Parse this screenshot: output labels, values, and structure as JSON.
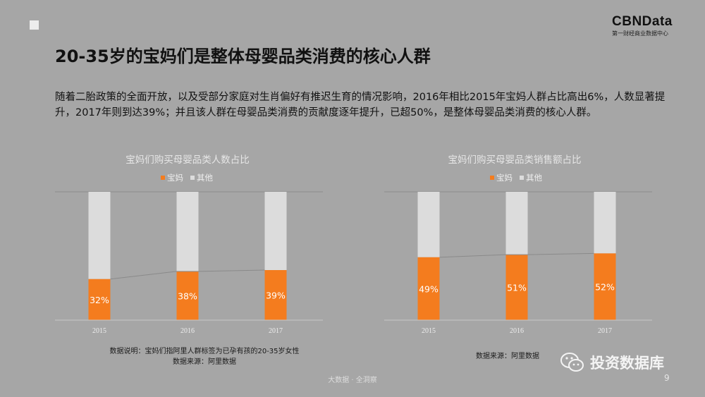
{
  "header": {
    "caption": "",
    "brand_name": "CBNData",
    "brand_sub": "第一财经商业数据中心"
  },
  "title": "20-35岁的宝妈们是整体母婴品类消费的核心人群",
  "intro": "随着二胎政策的全面开放，以及受部分家庭对生肖偏好有推迟生育的情况影响，2016年相比2015年宝妈人群占比高出6%，人数显著提升，2017年则到达39%；并且该人群在母婴品类消费的贡献度逐年提升，已超50%，是整体母婴品类消费的核心人群。",
  "colors": {
    "mom": "#f47c1e",
    "other": "#dcdcdc",
    "bg": "#a6a6a6"
  },
  "chart_data": [
    {
      "type": "bar",
      "stacked": true,
      "percent": true,
      "title": "宝妈们购买母婴品类人数占比",
      "categories": [
        "2015",
        "2016",
        "2017"
      ],
      "series": [
        {
          "name": "宝妈",
          "values": [
            32,
            38,
            39
          ],
          "labels": [
            "32%",
            "38%",
            "39%"
          ]
        },
        {
          "name": "其他",
          "values": [
            68,
            62,
            61
          ]
        }
      ],
      "ylim": [
        0,
        100
      ],
      "legend": "top"
    },
    {
      "type": "bar",
      "stacked": true,
      "percent": true,
      "title": "宝妈们购买母婴品类销售额占比",
      "categories": [
        "2015",
        "2016",
        "2017"
      ],
      "series": [
        {
          "name": "宝妈",
          "values": [
            49,
            51,
            52
          ],
          "labels": [
            "49%",
            "51%",
            "52%"
          ]
        },
        {
          "name": "其他",
          "values": [
            51,
            49,
            48
          ]
        }
      ],
      "ylim": [
        0,
        100
      ],
      "legend": "top"
    }
  ],
  "notes": {
    "left_line1": "数据说明：宝妈们指阿里人群标签为已孕有孩的20-35岁女性",
    "left_line2": "数据来源：阿里数据",
    "right_line1": "数据来源：阿里数据"
  },
  "watermark": {
    "text": "投资数据库"
  },
  "footer": {
    "tag": "大数据 · 全洞察",
    "page": "9"
  }
}
